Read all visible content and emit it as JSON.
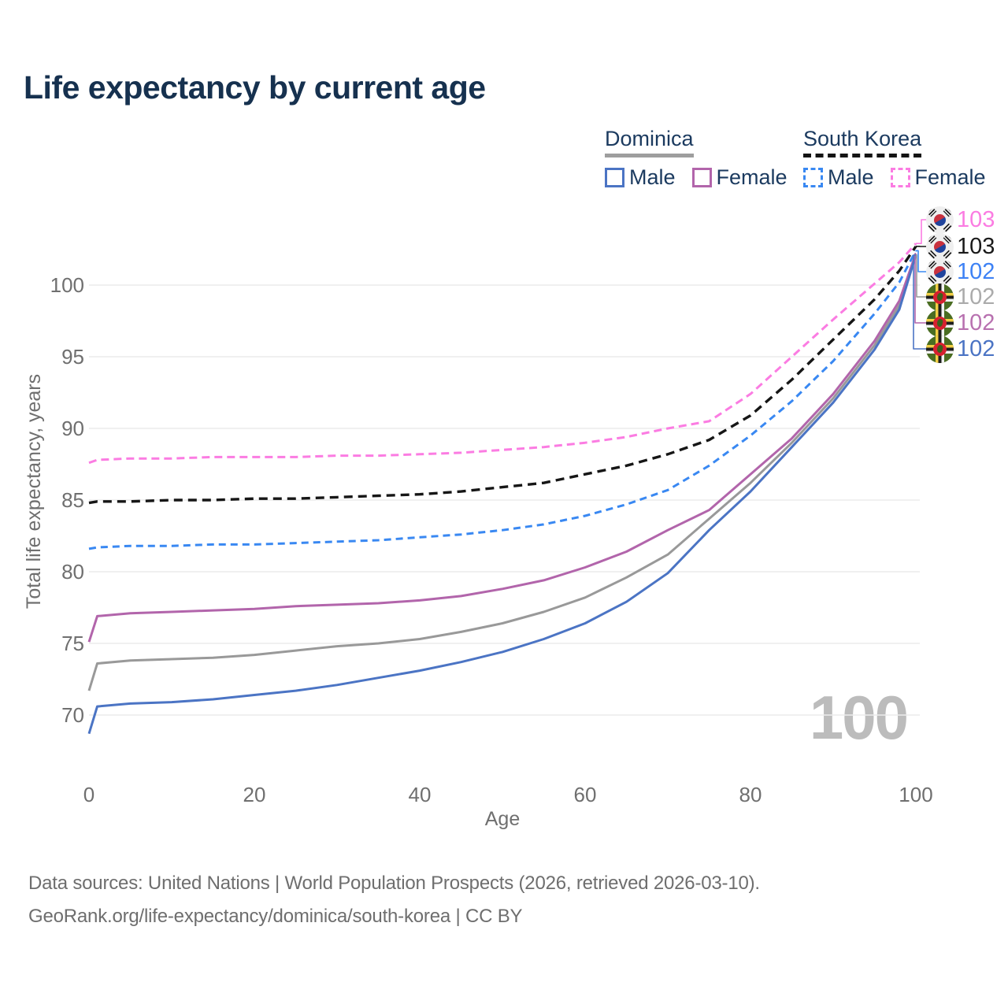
{
  "title": "Life expectancy by current age",
  "legend": {
    "groups": [
      {
        "country": "Dominica",
        "line_style": "solid",
        "underline_color": "#9e9e9e",
        "items": [
          {
            "label": "Male",
            "color": "#4b74c4"
          },
          {
            "label": "Female",
            "color": "#b265ab"
          }
        ]
      },
      {
        "country": "South Korea",
        "line_style": "dashed",
        "underline_color": "#141414",
        "items": [
          {
            "label": "Male",
            "color": "#3988f2"
          },
          {
            "label": "Female",
            "color": "#fb7ce2"
          }
        ]
      }
    ]
  },
  "y_axis": {
    "title": "Total life expectancy, years",
    "ticks": [
      70,
      75,
      80,
      85,
      90,
      95,
      100
    ]
  },
  "x_axis": {
    "title": "Age",
    "ticks": [
      0,
      20,
      40,
      60,
      80,
      100
    ]
  },
  "watermark": "100",
  "footer": {
    "line1": "Data sources: United Nations | World Population Prospects (2026, retrieved 2026-03-10).",
    "line2": "GeoRank.org/life-expectancy/dominica/south-korea | CC BY"
  },
  "chart_data": {
    "type": "line",
    "title": "Life expectancy by current age",
    "xlabel": "Age",
    "ylabel": "Total life expectancy, years",
    "xlim": [
      0,
      100
    ],
    "ylim": [
      67.5,
      104
    ],
    "grid": "horizontal",
    "gridline_color": "#ececec",
    "x": [
      0,
      1,
      5,
      10,
      15,
      20,
      25,
      30,
      35,
      40,
      45,
      50,
      55,
      60,
      65,
      70,
      75,
      80,
      85,
      90,
      95,
      98,
      100
    ],
    "series": [
      {
        "key": "sk_female",
        "name": "South Korea Female",
        "country": "South Korea",
        "sex": "Female",
        "style": "dashed",
        "color": "#fb7ce2",
        "label_color": "#fb7ce2",
        "dash": "10 6",
        "width": 3,
        "end_label": "103",
        "flag": "kr",
        "label_row": 0,
        "values": [
          87.6,
          87.8,
          87.9,
          87.9,
          88.0,
          88.0,
          88.0,
          88.1,
          88.1,
          88.2,
          88.3,
          88.5,
          88.7,
          89.0,
          89.4,
          90.0,
          90.5,
          92.4,
          95.0,
          97.6,
          100.1,
          101.6,
          102.9
        ]
      },
      {
        "key": "sk_total",
        "name": "South Korea Both sexes",
        "country": "South Korea",
        "sex": "Both",
        "style": "dashed",
        "color": "#161616",
        "label_color": "#1a1a1a",
        "dash": "11 7",
        "width": 3.4,
        "end_label": "103",
        "flag": "kr",
        "label_row": 1,
        "values": [
          84.8,
          84.9,
          84.9,
          85.0,
          85.0,
          85.1,
          85.1,
          85.2,
          85.3,
          85.4,
          85.6,
          85.9,
          86.2,
          86.8,
          87.4,
          88.2,
          89.2,
          90.9,
          93.4,
          96.2,
          99.0,
          101.0,
          102.7
        ]
      },
      {
        "key": "sk_male",
        "name": "South Korea Male",
        "country": "South Korea",
        "sex": "Male",
        "style": "dashed",
        "color": "#3988f2",
        "label_color": "#3e82f5",
        "dash": "9 6",
        "width": 3,
        "end_label": "102",
        "flag": "kr",
        "label_row": 2,
        "values": [
          81.6,
          81.7,
          81.8,
          81.8,
          81.9,
          81.9,
          82.0,
          82.1,
          82.2,
          82.4,
          82.6,
          82.9,
          83.3,
          83.9,
          84.7,
          85.7,
          87.4,
          89.5,
          91.9,
          94.7,
          98.0,
          100.2,
          102.4
        ]
      },
      {
        "key": "dominica_total",
        "name": "Dominica Both sexes",
        "country": "Dominica",
        "sex": "Both",
        "style": "solid",
        "color": "#999999",
        "label_color": "#ababab",
        "dash": "",
        "width": 3,
        "end_label": "102",
        "flag": "dm",
        "label_row": 3,
        "values": [
          71.7,
          73.6,
          73.8,
          73.9,
          74.0,
          74.2,
          74.5,
          74.8,
          75.0,
          75.3,
          75.8,
          76.4,
          77.2,
          78.2,
          79.6,
          81.2,
          83.7,
          86.2,
          89.0,
          92.1,
          95.8,
          98.6,
          102.1
        ]
      },
      {
        "key": "dominica_female",
        "name": "Dominica Female",
        "country": "Dominica",
        "sex": "Female",
        "style": "solid",
        "color": "#b265ab",
        "label_color": "#b871b0",
        "dash": "",
        "width": 3,
        "end_label": "102",
        "flag": "dm",
        "label_row": 4,
        "values": [
          75.1,
          76.9,
          77.1,
          77.2,
          77.3,
          77.4,
          77.6,
          77.7,
          77.8,
          78.0,
          78.3,
          78.8,
          79.4,
          80.3,
          81.4,
          82.9,
          84.3,
          86.8,
          89.3,
          92.4,
          96.1,
          98.9,
          102.2
        ]
      },
      {
        "key": "dominica_male",
        "name": "Dominica Male",
        "country": "Dominica",
        "sex": "Male",
        "style": "solid",
        "color": "#4b74c4",
        "label_color": "#4b74c4",
        "dash": "",
        "width": 3,
        "end_label": "102",
        "flag": "dm",
        "label_row": 5,
        "values": [
          68.7,
          70.6,
          70.8,
          70.9,
          71.1,
          71.4,
          71.7,
          72.1,
          72.6,
          73.1,
          73.7,
          74.4,
          75.3,
          76.4,
          77.9,
          79.9,
          82.9,
          85.6,
          88.7,
          91.8,
          95.5,
          98.3,
          102.1
        ]
      }
    ]
  }
}
